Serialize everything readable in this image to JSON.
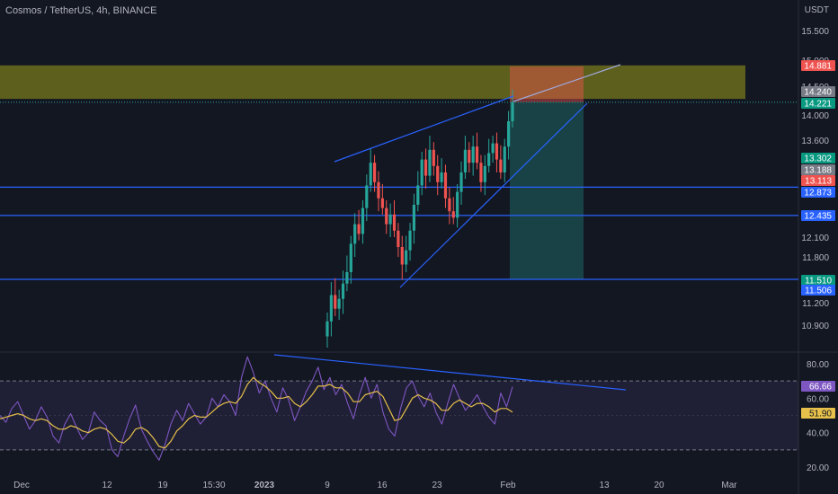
{
  "header": {
    "title": "Cosmos / TetherUS, 4h, BINANCE",
    "currency": "USDT"
  },
  "colors": {
    "background": "#131722",
    "up": "#26a69a",
    "down": "#ef5350",
    "trendline": "#2962ff",
    "rsi_line": "#7e57c2",
    "rsi_ma": "#e6c04a",
    "supply_zone": "#9a9a1a",
    "stop_zone": "#ef5350",
    "target_zone": "#26a69a",
    "axis_text": "#b2b5be"
  },
  "chart_data": [
    {
      "type": "candlestick",
      "title": "Cosmos / TetherUS, 4h, BINANCE",
      "ylabel": "USDT",
      "ylim": [
        10.6,
        15.9
      ],
      "x_ticks": [
        "Dec",
        "12",
        "19",
        "15:30",
        "2023",
        "9",
        "16",
        "23",
        "Feb",
        "13",
        "20",
        "Mar"
      ],
      "y_ticks": [
        15.5,
        15.0,
        14.5,
        14.0,
        13.6,
        12.1,
        11.8,
        11.2,
        10.9
      ],
      "y_tick_labels": [
        "15.500",
        "15.000",
        "14.500",
        "14.000",
        "13.600",
        "12.100",
        "11.800",
        "11.200",
        "10.900"
      ],
      "horizontal_levels": [
        {
          "value": 12.873,
          "label": "12.873"
        },
        {
          "value": 12.435,
          "label": "12.435"
        },
        {
          "value": 11.506,
          "label": "11.506"
        }
      ],
      "price_labels": [
        {
          "value": 14.881,
          "label": "14.881",
          "color": "#ef5350"
        },
        {
          "value": 14.24,
          "label": "14.240",
          "color": "#787b86"
        },
        {
          "value": 14.221,
          "label": "14.221",
          "color": "#089981"
        },
        {
          "value": 13.302,
          "label": "13.302",
          "color": "#089981"
        },
        {
          "value": 13.188,
          "label": "13.188",
          "color": "#787b86"
        },
        {
          "value": 13.113,
          "label": "13.113",
          "color": "#ef5350"
        },
        {
          "value": 12.873,
          "label": "12.873",
          "color": "#2962ff"
        },
        {
          "value": 12.435,
          "label": "12.435",
          "color": "#2962ff"
        },
        {
          "value": 11.51,
          "label": "11.510",
          "color": "#089981"
        },
        {
          "value": 11.506,
          "label": "11.506",
          "color": "#2962ff"
        }
      ],
      "supply_zone": {
        "from": 14.28,
        "to": 14.9
      },
      "position": {
        "entry": 14.221,
        "stop": 14.881,
        "target": 11.51
      },
      "close_series": [
        10.95,
        11.3,
        11.12,
        11.25,
        11.45,
        11.6,
        12.0,
        12.3,
        12.15,
        12.55,
        12.9,
        13.25,
        12.95,
        12.7,
        12.55,
        12.3,
        12.45,
        12.2,
        11.95,
        11.7,
        11.9,
        12.2,
        12.6,
        12.9,
        13.3,
        13.05,
        13.45,
        13.2,
        12.95,
        13.1,
        12.7,
        12.5,
        12.4,
        12.8,
        13.1,
        13.45,
        13.25,
        13.5,
        13.25,
        12.95,
        13.2,
        13.4,
        13.55,
        13.3,
        13.1,
        13.5,
        13.9,
        14.22
      ]
    },
    {
      "type": "line",
      "title": "RSI",
      "ylim": [
        15,
        90
      ],
      "y_ticks": [
        80,
        60,
        40,
        20
      ],
      "y_tick_labels": [
        "80.00",
        "60.00",
        "40.00",
        "20.00"
      ],
      "band": [
        30,
        70
      ],
      "latest": {
        "rsi": 66.66,
        "rsi_label": "66.66",
        "ma": 51.9,
        "ma_label": "51.90"
      },
      "series": [
        {
          "values": [
            50,
            46,
            54,
            58,
            50,
            42,
            47,
            55,
            49,
            38,
            34,
            45,
            51,
            43,
            36,
            40,
            52,
            47,
            44,
            30,
            26,
            38,
            48,
            56,
            42,
            35,
            29,
            24,
            33,
            45,
            53,
            47,
            57,
            51,
            45,
            49,
            60,
            55,
            62,
            58,
            50,
            72,
            84,
            75,
            63,
            70,
            60,
            52,
            66,
            59,
            47,
            55,
            64,
            70,
            78,
            65,
            72,
            62,
            68,
            57,
            48,
            62,
            72,
            60,
            68,
            52,
            42,
            38,
            54,
            66,
            70,
            61,
            55,
            63,
            52,
            45,
            57,
            68,
            60,
            53,
            57,
            62,
            55,
            49,
            45,
            63,
            55,
            66.66
          ]
        },
        {
          "values": [
            48,
            49,
            50,
            51,
            50,
            48,
            47,
            48,
            47,
            44,
            42,
            42,
            44,
            43,
            41,
            40,
            42,
            43,
            42,
            39,
            35,
            34,
            37,
            42,
            43,
            41,
            37,
            32,
            31,
            35,
            41,
            44,
            48,
            50,
            49,
            49,
            52,
            55,
            57,
            58,
            57,
            61,
            68,
            72,
            69,
            67,
            64,
            60,
            60,
            61,
            57,
            55,
            58,
            62,
            67,
            67,
            68,
            66,
            66,
            63,
            58,
            58,
            62,
            63,
            64,
            61,
            54,
            47,
            48,
            54,
            60,
            62,
            60,
            59,
            57,
            53,
            53,
            57,
            59,
            57,
            55,
            57,
            57,
            55,
            52,
            54,
            54,
            51.9
          ]
        }
      ]
    }
  ]
}
